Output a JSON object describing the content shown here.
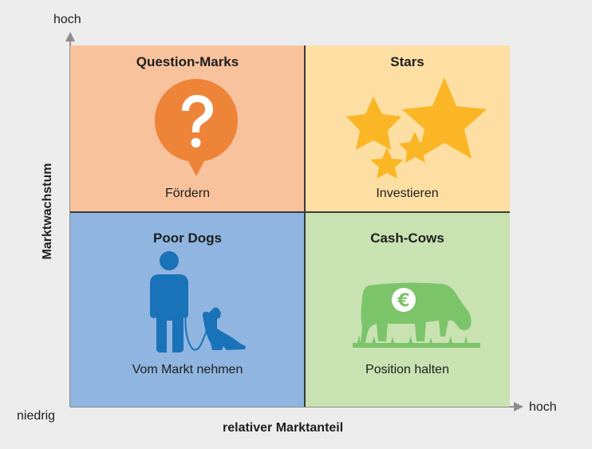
{
  "axes": {
    "y_high": "hoch",
    "x_high": "hoch",
    "origin_low": "niedrig",
    "x_title": "relativer Marktanteil",
    "y_title": "Marktwachstum"
  },
  "quadrants": {
    "question_marks": {
      "title": "Question-Marks",
      "action": "Fördern",
      "color": "#f8c29d",
      "icon": "question-bubble-icon"
    },
    "stars": {
      "title": "Stars",
      "action": "Investieren",
      "color": "#fddfa3",
      "icon": "stars-icon"
    },
    "poor_dogs": {
      "title": "Poor Dogs",
      "action": "Vom Markt nehmen",
      "color": "#8fb5e0",
      "icon": "person-with-dog-icon"
    },
    "cash_cows": {
      "title": "Cash-Cows",
      "action": "Position halten",
      "color": "#c8e2b2",
      "icon": "euro-cow-icon"
    }
  },
  "symbols": {
    "euro": "€"
  }
}
